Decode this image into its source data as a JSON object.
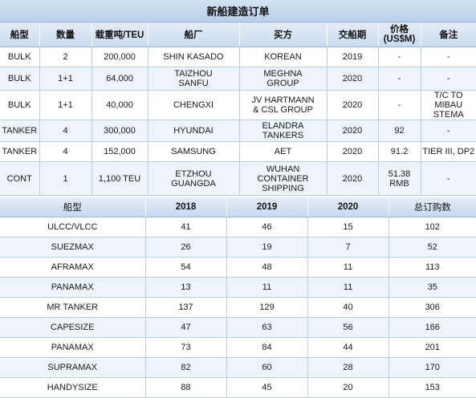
{
  "table1": {
    "title": "新船建造订单",
    "headers": [
      "船型",
      "数量",
      "载重吨/TEU",
      "船厂",
      "买方",
      "交船期",
      "价格\n(US$M)",
      "备注"
    ],
    "rows": [
      [
        "BULK",
        "2",
        "200,000",
        "SHIN KASADO",
        "KOREAN",
        "2019",
        "-",
        "-"
      ],
      [
        "BULK",
        "1+1",
        "64,000",
        "TAIZHOU\nSANFU",
        "MEGHNA\nGROUP",
        "2020",
        "-",
        "-"
      ],
      [
        "BULK",
        "1+1",
        "40,000",
        "CHENGXI",
        "JV HARTMANN\n& CSL GROUP",
        "2020",
        "-",
        "T/C TO MIBAU\nSTEMA"
      ],
      [
        "TANKER",
        "4",
        "300,000",
        "HYUNDAI",
        "ELANDRA\nTANKERS",
        "2020",
        "92",
        "-"
      ],
      [
        "TANKER",
        "4",
        "152,000",
        "SAMSUNG",
        "AET",
        "2020",
        "91.2",
        "TIER III, DP2"
      ],
      [
        "CONT",
        "1",
        "1,100 TEU",
        "ETZHOU\nGUANGDA",
        "WUHAN\nCONTAINER\nSHIPPING",
        "2020",
        "51.38\nRMB",
        "-"
      ]
    ]
  },
  "table2": {
    "headers": [
      "船型",
      "2018",
      "2019",
      "2020",
      "总订购数"
    ],
    "rows": [
      [
        "ULCC/VLCC",
        "41",
        "46",
        "15",
        "102"
      ],
      [
        "SUEZMAX",
        "26",
        "19",
        "7",
        "52"
      ],
      [
        "AFRAMAX",
        "54",
        "48",
        "11",
        "113"
      ],
      [
        "PANAMAX",
        "13",
        "11",
        "11",
        "35"
      ],
      [
        "MR TANKER",
        "137",
        "129",
        "40",
        "306"
      ],
      [
        "CAPESIZE",
        "47",
        "63",
        "56",
        "166"
      ],
      [
        "PANAMAX",
        "73",
        "84",
        "44",
        "201"
      ],
      [
        "SUPRAMAX",
        "82",
        "60",
        "28",
        "170"
      ],
      [
        "HANDYSIZE",
        "88",
        "45",
        "20",
        "153"
      ]
    ]
  }
}
